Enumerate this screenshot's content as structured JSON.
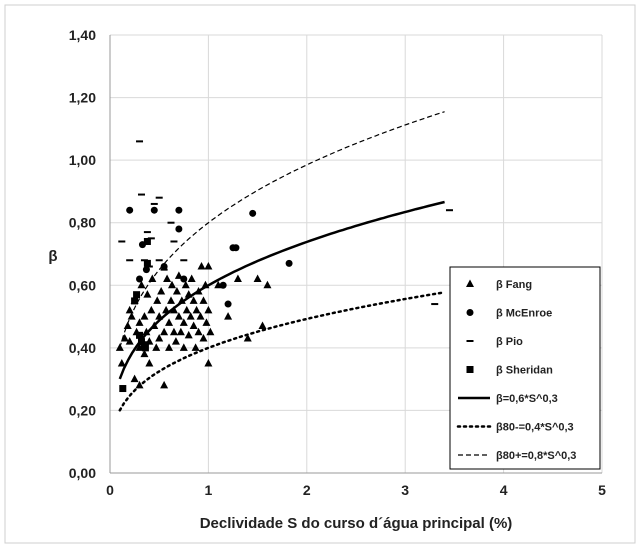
{
  "chart_data": {
    "type": "scatter",
    "title": "",
    "xlabel": "Declividade S do curso d´água principal (%)",
    "ylabel": "β",
    "xlim": [
      0,
      5
    ],
    "ylim": [
      0,
      1.4
    ],
    "x_ticks": [
      0,
      1,
      2,
      3,
      4,
      5
    ],
    "x_tick_labels": [
      "0",
      "1",
      "2",
      "3",
      "4",
      "5"
    ],
    "y_ticks": [
      0,
      0.2,
      0.4,
      0.6,
      0.8,
      1.0,
      1.2,
      1.4
    ],
    "y_tick_labels": [
      "0,00",
      "0,20",
      "0,40",
      "0,60",
      "0,80",
      "1,00",
      "1,20",
      "1,40"
    ],
    "grid": true,
    "legend_position": "right",
    "scatter_series": [
      {
        "name": "β Fang",
        "marker": "triangle",
        "points": [
          [
            0.1,
            0.4
          ],
          [
            0.12,
            0.35
          ],
          [
            0.15,
            0.43
          ],
          [
            0.18,
            0.47
          ],
          [
            0.2,
            0.42
          ],
          [
            0.2,
            0.52
          ],
          [
            0.22,
            0.5
          ],
          [
            0.25,
            0.3
          ],
          [
            0.25,
            0.55
          ],
          [
            0.27,
            0.45
          ],
          [
            0.3,
            0.28
          ],
          [
            0.3,
            0.4
          ],
          [
            0.3,
            0.48
          ],
          [
            0.32,
            0.6
          ],
          [
            0.35,
            0.38
          ],
          [
            0.35,
            0.5
          ],
          [
            0.37,
            0.45
          ],
          [
            0.38,
            0.57
          ],
          [
            0.4,
            0.35
          ],
          [
            0.4,
            0.42
          ],
          [
            0.42,
            0.52
          ],
          [
            0.43,
            0.62
          ],
          [
            0.45,
            0.47
          ],
          [
            0.47,
            0.4
          ],
          [
            0.48,
            0.55
          ],
          [
            0.5,
            0.43
          ],
          [
            0.5,
            0.5
          ],
          [
            0.52,
            0.58
          ],
          [
            0.55,
            0.28
          ],
          [
            0.55,
            0.45
          ],
          [
            0.57,
            0.52
          ],
          [
            0.58,
            0.62
          ],
          [
            0.6,
            0.4
          ],
          [
            0.6,
            0.48
          ],
          [
            0.62,
            0.55
          ],
          [
            0.63,
            0.6
          ],
          [
            0.65,
            0.45
          ],
          [
            0.65,
            0.52
          ],
          [
            0.67,
            0.42
          ],
          [
            0.68,
            0.58
          ],
          [
            0.7,
            0.5
          ],
          [
            0.7,
            0.63
          ],
          [
            0.72,
            0.45
          ],
          [
            0.73,
            0.55
          ],
          [
            0.75,
            0.4
          ],
          [
            0.75,
            0.48
          ],
          [
            0.77,
            0.6
          ],
          [
            0.78,
            0.52
          ],
          [
            0.8,
            0.44
          ],
          [
            0.8,
            0.57
          ],
          [
            0.82,
            0.5
          ],
          [
            0.83,
            0.62
          ],
          [
            0.85,
            0.47
          ],
          [
            0.85,
            0.55
          ],
          [
            0.87,
            0.4
          ],
          [
            0.88,
            0.52
          ],
          [
            0.9,
            0.58
          ],
          [
            0.9,
            0.45
          ],
          [
            0.92,
            0.5
          ],
          [
            0.93,
            0.66
          ],
          [
            0.95,
            0.55
          ],
          [
            0.95,
            0.43
          ],
          [
            0.97,
            0.6
          ],
          [
            0.98,
            0.48
          ],
          [
            1.0,
            0.66
          ],
          [
            1.0,
            0.52
          ],
          [
            1.0,
            0.35
          ],
          [
            1.02,
            0.45
          ],
          [
            1.1,
            0.6
          ],
          [
            1.2,
            0.5
          ],
          [
            1.3,
            0.62
          ],
          [
            1.4,
            0.43
          ],
          [
            1.5,
            0.62
          ],
          [
            1.55,
            0.47
          ],
          [
            1.6,
            0.6
          ]
        ]
      },
      {
        "name": "β McEnroe",
        "marker": "circle",
        "points": [
          [
            0.2,
            0.84
          ],
          [
            0.3,
            0.62
          ],
          [
            0.33,
            0.73
          ],
          [
            0.37,
            0.65
          ],
          [
            0.45,
            0.84
          ],
          [
            0.55,
            0.66
          ],
          [
            0.7,
            0.78
          ],
          [
            0.7,
            0.84
          ],
          [
            0.75,
            0.62
          ],
          [
            1.15,
            0.6
          ],
          [
            1.2,
            0.54
          ],
          [
            1.25,
            0.72
          ],
          [
            1.28,
            0.72
          ],
          [
            1.45,
            0.83
          ],
          [
            1.82,
            0.67
          ]
        ]
      },
      {
        "name": "β Pio",
        "marker": "dash",
        "points": [
          [
            0.12,
            0.74
          ],
          [
            0.2,
            0.68
          ],
          [
            0.3,
            1.06
          ],
          [
            0.32,
            0.89
          ],
          [
            0.35,
            0.68
          ],
          [
            0.38,
            0.77
          ],
          [
            0.4,
            0.66
          ],
          [
            0.42,
            0.75
          ],
          [
            0.45,
            0.86
          ],
          [
            0.5,
            0.88
          ],
          [
            0.5,
            0.68
          ],
          [
            0.55,
            0.65
          ],
          [
            0.62,
            0.8
          ],
          [
            0.65,
            0.74
          ],
          [
            0.75,
            0.68
          ],
          [
            3.3,
            0.54
          ],
          [
            3.45,
            0.84
          ]
        ]
      },
      {
        "name": "β Sheridan",
        "marker": "square",
        "points": [
          [
            0.13,
            0.27
          ],
          [
            0.25,
            0.55
          ],
          [
            0.27,
            0.57
          ],
          [
            0.3,
            0.44
          ],
          [
            0.32,
            0.42
          ],
          [
            0.35,
            0.41
          ],
          [
            0.36,
            0.4
          ],
          [
            0.38,
            0.74
          ],
          [
            0.38,
            0.67
          ]
        ]
      }
    ],
    "line_series": [
      {
        "name": "β=0,6*S^0,3",
        "coef": 0.6,
        "exp": 0.3,
        "style": "solid",
        "x_range": [
          0.1,
          3.4
        ]
      },
      {
        "name": "β80-=0,4*S^0,3",
        "coef": 0.4,
        "exp": 0.3,
        "style": "dotted",
        "x_range": [
          0.1,
          3.4
        ]
      },
      {
        "name": "β80+=0,8*S^0,3",
        "coef": 0.8,
        "exp": 0.3,
        "style": "dashed",
        "x_range": [
          0.1,
          3.4
        ]
      }
    ]
  }
}
